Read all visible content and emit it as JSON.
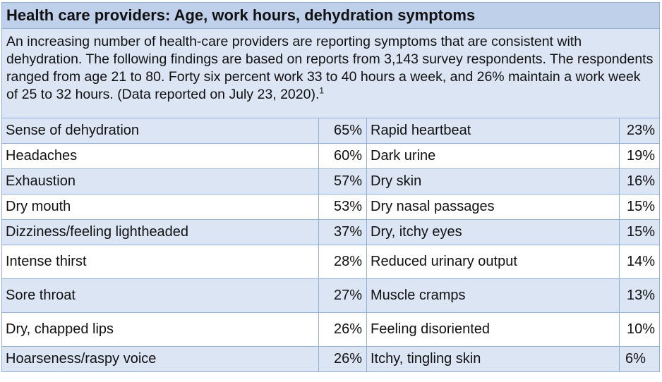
{
  "title": "Health care providers: Age, work hours, dehydration symptoms",
  "intro": "An increasing number of health-care providers are reporting symptoms that are consistent with dehydration. The following findings are based on reports from 3,143 survey respondents. The respondents ranged from age 21 to 80. Forty six percent work 33 to 40 hours a week, and 26% maintain a work week of 25 to 32 hours. (Data reported on July 23, 2020).",
  "footnote_marker": "1",
  "rows": [
    {
      "left_label": "Sense of dehydration",
      "left_value": "65%",
      "right_label": "Rapid heartbeat",
      "right_value": "23%"
    },
    {
      "left_label": "Headaches",
      "left_value": "60%",
      "right_label": "Dark urine",
      "right_value": "19%"
    },
    {
      "left_label": "Exhaustion",
      "left_value": "57%",
      "right_label": "Dry skin",
      "right_value": "16%"
    },
    {
      "left_label": "Dry mouth",
      "left_value": "53%",
      "right_label": "Dry nasal passages",
      "right_value": "15%"
    },
    {
      "left_label": "Dizziness/feeling lightheaded",
      "left_value": "37%",
      "right_label": "Dry, itchy eyes",
      "right_value": "15%"
    },
    {
      "left_label": "Intense thirst",
      "left_value": "28%",
      "right_label": "Reduced urinary output",
      "right_value": "14%"
    },
    {
      "left_label": "Sore throat",
      "left_value": "27%",
      "right_label": "Muscle cramps",
      "right_value": "13%"
    },
    {
      "left_label": "Dry, chapped lips",
      "left_value": "26%",
      "right_label": "Feeling disoriented",
      "right_value": "10%"
    },
    {
      "left_label": "Hoarseness/raspy voice",
      "left_value": "26%",
      "right_label": "Itchy, tingling skin",
      "right_value": "6%"
    }
  ]
}
